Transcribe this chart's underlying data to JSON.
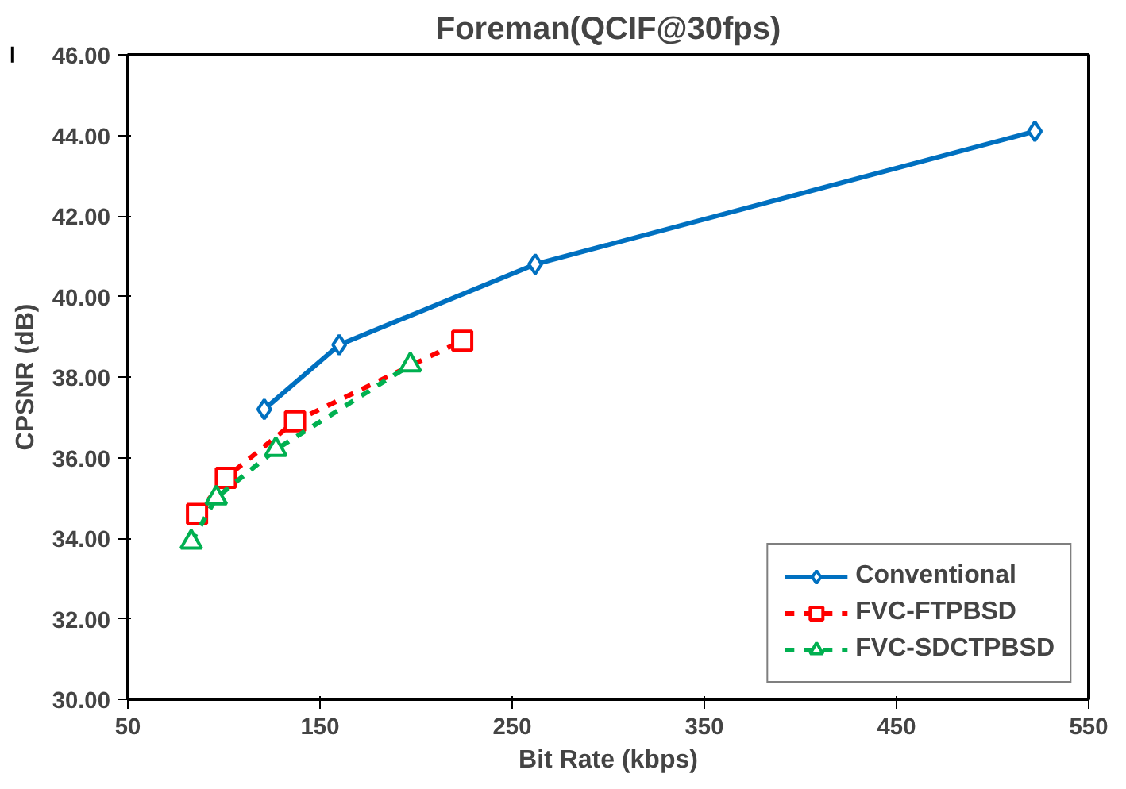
{
  "chart_data": {
    "type": "line",
    "title": "Foreman(QCIF@30fps)",
    "xlabel": "Bit Rate (kbps)",
    "ylabel": "CPSNR (dB)",
    "xlim": [
      50,
      550
    ],
    "xticks": [
      50,
      150,
      250,
      350,
      450,
      550
    ],
    "ylim": [
      30,
      46
    ],
    "yticks": [
      {
        "value": 30,
        "label": "30.00"
      },
      {
        "value": 32,
        "label": "32.00"
      },
      {
        "value": 34,
        "label": "34.00"
      },
      {
        "value": 36,
        "label": "36.00"
      },
      {
        "value": 38,
        "label": "38.00"
      },
      {
        "value": 40,
        "label": "40.00"
      },
      {
        "value": 42,
        "label": "42.00"
      },
      {
        "value": 44,
        "label": "44.00"
      },
      {
        "value": 46,
        "label": "46.00"
      }
    ],
    "grid": false,
    "legend": "bottom right",
    "series": [
      {
        "name": "Conventional",
        "color": "#0070c0",
        "x": [
          121,
          160,
          262,
          522
        ],
        "values": [
          37.2,
          38.8,
          40.8,
          44.1
        ],
        "marker": "diamond",
        "line_style": "solid"
      },
      {
        "name": "FVC-FTPBSD",
        "color": "#ff0000",
        "x": [
          86,
          101,
          137,
          224
        ],
        "values": [
          34.6,
          35.5,
          36.9,
          38.9
        ],
        "marker": "square",
        "line_style": "dashed"
      },
      {
        "name": "FVC-SDCTPBSD",
        "color": "#00b050",
        "x": [
          83,
          96,
          127,
          197
        ],
        "values": [
          33.9,
          35.0,
          36.2,
          38.3
        ],
        "marker": "triangle",
        "line_style": "dashed"
      }
    ]
  }
}
